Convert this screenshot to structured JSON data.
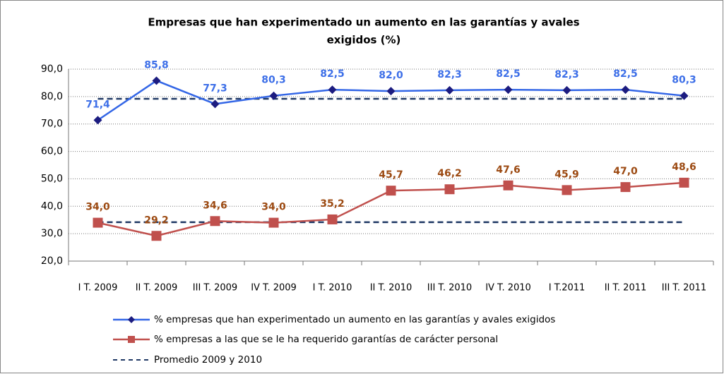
{
  "chart_data": {
    "type": "line",
    "title_lines": [
      "Empresas que han experimentado un aumento en las garantías y avales",
      "exigidos (%)"
    ],
    "categories": [
      "I T. 2009",
      "II T. 2009",
      "III T. 2009",
      "IV T. 2009",
      "I T. 2010",
      "II T. 2010",
      "III T. 2010",
      "IV T. 2010",
      "I T.2011",
      "II T. 2011",
      "III T. 2011"
    ],
    "series": [
      {
        "name": "% empresas que han experimentado un aumento en las garantías y avales exigidos",
        "color": "#3366e6",
        "marker_color": "#1c1c80",
        "label_color": "#3d6fe8",
        "marker": "diamond",
        "values": [
          71.4,
          85.8,
          77.3,
          80.3,
          82.5,
          82.0,
          82.3,
          82.5,
          82.3,
          82.5,
          80.3
        ],
        "value_labels": [
          "71,4",
          "85,8",
          "77,3",
          "80,3",
          "82,5",
          "82,0",
          "82,3",
          "82,5",
          "82,3",
          "82,5",
          "80,3"
        ]
      },
      {
        "name": "% empresas a las que se le ha requerido garantías de carácter personal",
        "color": "#c0504d",
        "marker_color": "#c0504d",
        "label_color": "#9c4a12",
        "marker": "square",
        "values": [
          34.0,
          29.2,
          34.6,
          34.0,
          35.2,
          45.7,
          46.2,
          47.6,
          45.9,
          47.0,
          48.6
        ],
        "value_labels": [
          "34,0",
          "29,2",
          "34,6",
          "34,0",
          "35,2",
          "45,7",
          "46,2",
          "47,6",
          "45,9",
          "47,0",
          "48,6"
        ]
      }
    ],
    "average": {
      "name": "Promedio 2009 y 2010",
      "color": "#1f3864",
      "values": [
        79.2,
        34.2
      ]
    },
    "ylim": [
      20,
      90
    ],
    "yticks": [
      {
        "value": 20,
        "label": "20,0"
      },
      {
        "value": 30,
        "label": "30,0"
      },
      {
        "value": 40,
        "label": "40,0"
      },
      {
        "value": 50,
        "label": "50,0"
      },
      {
        "value": 60,
        "label": "60,0"
      },
      {
        "value": 70,
        "label": "70,0"
      },
      {
        "value": 80,
        "label": "80,0"
      },
      {
        "value": 90,
        "label": "90,0"
      }
    ],
    "grid": true
  }
}
